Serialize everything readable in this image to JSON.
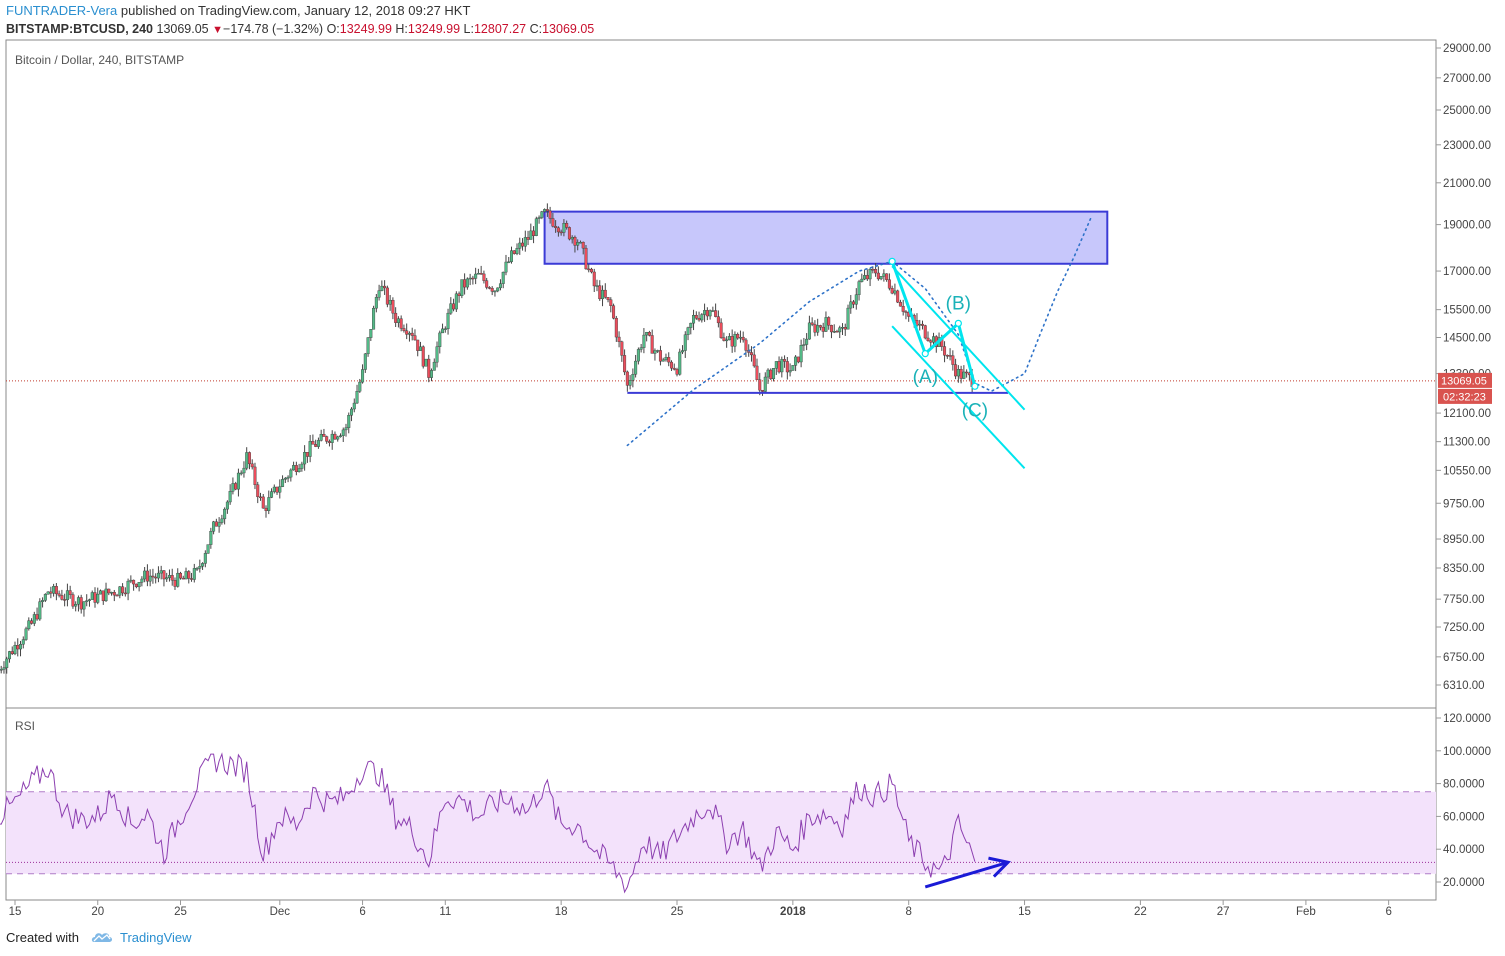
{
  "header": {
    "author": "FUNTRADER-Vera",
    "published_text": "published on TradingView.com, January 12, 2018 09:27 HKT",
    "symbol": "BITSTAMP:BTCUSD, 240",
    "last": "13069.05",
    "change_arrow": "▼",
    "change": "−174.78 (−1.32%)",
    "o_label": "O:",
    "o_value": "13249.99",
    "h_label": "H:",
    "h_value": "13249.99",
    "l_label": "L:",
    "l_value": "12807.27",
    "c_label": "C:",
    "c_value": "13069.05"
  },
  "footer": {
    "created_with": "Created with",
    "brand": "TradingView",
    "logo_icon": "tradingview-cloud-icon"
  },
  "colors": {
    "up_candle": "#53b987",
    "down_candle": "#eb4d5c",
    "wick": "#444444",
    "zone_fill": "#c7c7fb",
    "zone_stroke": "#3b3bd6",
    "cyan": "#00e5ee",
    "wave_label": "#1ab2b8",
    "arc": "#2f73c9",
    "rsi_line": "#8c3fb0",
    "rsi_band": "#f3e2fb",
    "price_tag": "#d9534f",
    "divergence_arrow": "#1a1ad6"
  },
  "chart_data": {
    "type": "candlestick",
    "title": "Bitcoin / Dollar, 240, BITSTAMP",
    "price_scale": "log",
    "ylim": [
      6000,
      30000
    ],
    "price_ticks": [
      "29000.00",
      "27000.00",
      "25000.00",
      "23000.00",
      "21000.00",
      "19000.00",
      "17000.00",
      "15500.00",
      "14500.00",
      "13300.00",
      "12100.00",
      "11300.00",
      "10550.00",
      "9750.00",
      "8950.00",
      "8350.00",
      "7750.00",
      "7250.00",
      "6750.00",
      "6310.00"
    ],
    "last_price_label": "13069.05",
    "countdown_label": "02:32:23",
    "x_ticks": [
      {
        "label": "15",
        "date": "2017-11-15"
      },
      {
        "label": "20",
        "date": "2017-11-20"
      },
      {
        "label": "25",
        "date": "2017-11-25"
      },
      {
        "label": "Dec",
        "date": "2017-12-01"
      },
      {
        "label": "6",
        "date": "2017-12-06"
      },
      {
        "label": "11",
        "date": "2017-12-11"
      },
      {
        "label": "18",
        "date": "2017-12-18"
      },
      {
        "label": "25",
        "date": "2017-12-25"
      },
      {
        "label": "2018",
        "date": "2018-01-01",
        "bold": true
      },
      {
        "label": "8",
        "date": "2018-01-08"
      },
      {
        "label": "15",
        "date": "2018-01-15"
      },
      {
        "label": "22",
        "date": "2018-01-22"
      },
      {
        "label": "27",
        "date": "2018-01-27"
      },
      {
        "label": "Feb",
        "date": "2018-02-01"
      },
      {
        "label": "6",
        "date": "2018-02-06"
      }
    ],
    "price_path": [
      [
        "2017-11-14",
        6550
      ],
      [
        "2017-11-16",
        7300
      ],
      [
        "2017-11-17",
        7900
      ],
      [
        "2017-11-19",
        7700
      ],
      [
        "2017-11-21",
        7900
      ],
      [
        "2017-11-23",
        8200
      ],
      [
        "2017-11-25",
        8100
      ],
      [
        "2017-11-26",
        8250
      ],
      [
        "2017-11-27",
        9200
      ],
      [
        "2017-11-28",
        9900
      ],
      [
        "2017-11-29",
        10900
      ],
      [
        "2017-11-30",
        9600
      ],
      [
        "2017-12-01",
        10200
      ],
      [
        "2017-12-03",
        11200
      ],
      [
        "2017-12-05",
        11700
      ],
      [
        "2017-12-06",
        13300
      ],
      [
        "2017-12-07",
        16500
      ],
      [
        "2017-12-08",
        15200
      ],
      [
        "2017-12-09",
        14700
      ],
      [
        "2017-12-10",
        13300
      ],
      [
        "2017-12-11",
        15000
      ],
      [
        "2017-12-12",
        16400
      ],
      [
        "2017-12-13",
        16800
      ],
      [
        "2017-12-14",
        16300
      ],
      [
        "2017-12-15",
        17600
      ],
      [
        "2017-12-16",
        18400
      ],
      [
        "2017-12-17",
        19500
      ],
      [
        "2017-12-18",
        18900
      ],
      [
        "2017-12-19",
        18300
      ],
      [
        "2017-12-20",
        16400
      ],
      [
        "2017-12-21",
        15600
      ],
      [
        "2017-12-22",
        12900
      ],
      [
        "2017-12-23",
        14600
      ],
      [
        "2017-12-24",
        13800
      ],
      [
        "2017-12-25",
        13500
      ],
      [
        "2017-12-26",
        15200
      ],
      [
        "2017-12-27",
        15600
      ],
      [
        "2017-12-28",
        14300
      ],
      [
        "2017-12-29",
        14600
      ],
      [
        "2017-12-30",
        12800
      ],
      [
        "2017-12-31",
        13600
      ],
      [
        "2018-01-01",
        13400
      ],
      [
        "2018-01-02",
        14800
      ],
      [
        "2018-01-03",
        15000
      ],
      [
        "2018-01-04",
        14700
      ],
      [
        "2018-01-05",
        16500
      ],
      [
        "2018-01-06",
        17000
      ],
      [
        "2018-01-07",
        16400
      ],
      [
        "2018-01-08",
        15200
      ],
      [
        "2018-01-09",
        14700
      ],
      [
        "2018-01-10",
        14200
      ],
      [
        "2018-01-11",
        13300
      ],
      [
        "2018-01-12",
        13069
      ]
    ],
    "resistance_zone": {
      "date_from": "2017-12-17",
      "date_to": "2018-01-20",
      "price_low": 17300,
      "price_high": 19600
    },
    "support_line": {
      "date_from": "2017-12-22",
      "date_to": "2018-01-14",
      "price": 12700
    },
    "arc_points": [
      [
        "2017-12-22",
        11200
      ],
      [
        "2017-12-26",
        12800
      ],
      [
        "2017-12-30",
        14300
      ],
      [
        "2018-01-02",
        15800
      ],
      [
        "2018-01-05",
        17000
      ],
      [
        "2018-01-07",
        17400
      ],
      [
        "2018-01-09",
        16300
      ],
      [
        "2018-01-11",
        14600
      ],
      [
        "2018-01-12",
        13000
      ],
      [
        "2018-01-13",
        12750
      ],
      [
        "2018-01-15",
        13300
      ],
      [
        "2018-01-16",
        14700
      ],
      [
        "2018-01-17",
        16200
      ],
      [
        "2018-01-18",
        17600
      ],
      [
        "2018-01-19",
        19300
      ]
    ],
    "wave_lines": [
      [
        [
          "2018-01-07",
          17400
        ],
        [
          "2018-01-09",
          13950
        ]
      ],
      [
        [
          "2018-01-09",
          13950
        ],
        [
          "2018-01-11",
          15000
        ]
      ],
      [
        [
          "2018-01-11",
          15000
        ],
        [
          "2018-01-12",
          12900
        ]
      ]
    ],
    "wave_labels": [
      {
        "text": "(A)",
        "date": "2018-01-09",
        "price": 13000
      },
      {
        "text": "(B)",
        "date": "2018-01-11",
        "price": 15500
      },
      {
        "text": "(C)",
        "date": "2018-01-12",
        "price": 12000
      }
    ],
    "channel_lines": [
      [
        [
          "2018-01-07",
          17200
        ],
        [
          "2018-01-15",
          12200
        ]
      ],
      [
        [
          "2018-01-07",
          14900
        ],
        [
          "2018-01-15",
          10600
        ]
      ]
    ],
    "rsi": {
      "label": "RSI",
      "ticks": [
        "120.0000",
        "100.0000",
        "80.0000",
        "60.0000",
        "40.0000",
        "20.0000"
      ],
      "ylim": [
        10,
        125
      ],
      "band": [
        25,
        75
      ],
      "midline": 32,
      "points": [
        [
          "2017-11-14",
          60
        ],
        [
          "2017-11-15",
          68
        ],
        [
          "2017-11-16",
          80
        ],
        [
          "2017-11-17",
          90
        ],
        [
          "2017-11-18",
          62
        ],
        [
          "2017-11-19",
          58
        ],
        [
          "2017-11-20",
          60
        ],
        [
          "2017-11-21",
          75
        ],
        [
          "2017-11-22",
          55
        ],
        [
          "2017-11-23",
          62
        ],
        [
          "2017-11-24",
          38
        ],
        [
          "2017-11-25",
          60
        ],
        [
          "2017-11-26",
          80
        ],
        [
          "2017-11-27",
          95
        ],
        [
          "2017-11-28",
          92
        ],
        [
          "2017-11-29",
          88
        ],
        [
          "2017-11-30",
          37
        ],
        [
          "2017-12-01",
          60
        ],
        [
          "2017-12-02",
          55
        ],
        [
          "2017-12-03",
          75
        ],
        [
          "2017-12-04",
          68
        ],
        [
          "2017-12-05",
          72
        ],
        [
          "2017-12-06",
          90
        ],
        [
          "2017-12-07",
          86
        ],
        [
          "2017-12-08",
          60
        ],
        [
          "2017-12-09",
          52
        ],
        [
          "2017-12-10",
          33
        ],
        [
          "2017-12-11",
          72
        ],
        [
          "2017-12-12",
          70
        ],
        [
          "2017-12-13",
          60
        ],
        [
          "2017-12-14",
          68
        ],
        [
          "2017-12-15",
          70
        ],
        [
          "2017-12-16",
          63
        ],
        [
          "2017-12-17",
          80
        ],
        [
          "2017-12-18",
          54
        ],
        [
          "2017-12-19",
          55
        ],
        [
          "2017-12-20",
          40
        ],
        [
          "2017-12-21",
          30
        ],
        [
          "2017-12-22",
          18
        ],
        [
          "2017-12-23",
          45
        ],
        [
          "2017-12-24",
          35
        ],
        [
          "2017-12-25",
          48
        ],
        [
          "2017-12-26",
          60
        ],
        [
          "2017-12-27",
          68
        ],
        [
          "2017-12-28",
          45
        ],
        [
          "2017-12-29",
          52
        ],
        [
          "2017-12-30",
          28
        ],
        [
          "2017-12-31",
          50
        ],
        [
          "2018-01-01",
          40
        ],
        [
          "2018-01-02",
          60
        ],
        [
          "2018-01-03",
          62
        ],
        [
          "2018-01-04",
          55
        ],
        [
          "2018-01-05",
          78
        ],
        [
          "2018-01-06",
          72
        ],
        [
          "2018-01-07",
          80
        ],
        [
          "2018-01-08",
          45
        ],
        [
          "2018-01-09",
          32
        ],
        [
          "2018-01-10",
          25
        ],
        [
          "2018-01-11",
          55
        ],
        [
          "2018-01-12",
          32
        ]
      ],
      "divergence_arrow": [
        [
          "2018-01-09",
          17
        ],
        [
          "2018-01-14",
          32
        ]
      ]
    }
  }
}
